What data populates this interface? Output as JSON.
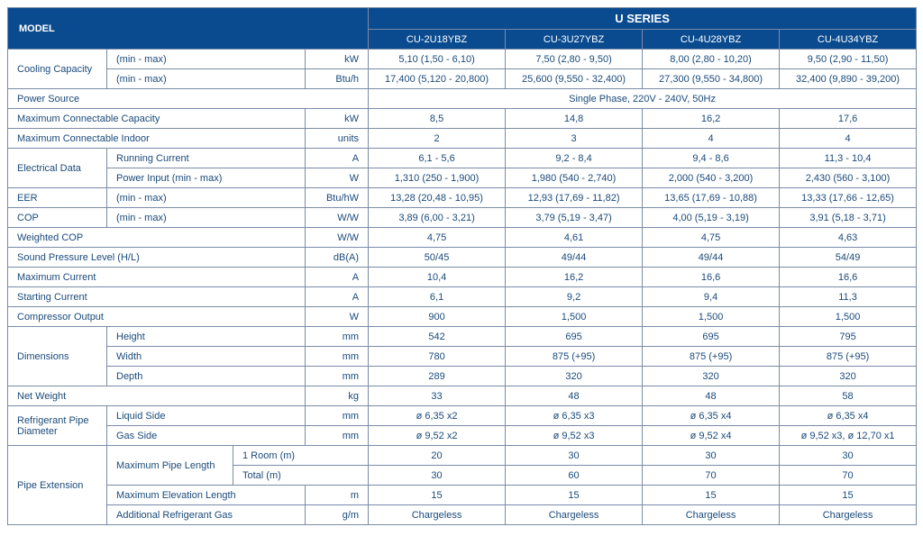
{
  "header": {
    "model_label": "MODEL",
    "series_label": "U SERIES",
    "models": [
      "CU-2U18YBZ",
      "CU-3U27YBZ",
      "CU-4U28YBZ",
      "CU-4U34YBZ"
    ]
  },
  "rows": {
    "cooling_capacity_label": "Cooling Capacity",
    "minmax": "(min - max)",
    "kW": "kW",
    "cc_kw": [
      "5,10 (1,50 - 6,10)",
      "7,50 (2,80 - 9,50)",
      "8,00 (2,80 - 10,20)",
      "9,50 (2,90 - 11,50)"
    ],
    "btu": "Btu/h",
    "cc_btu": [
      "17,400 (5,120 - 20,800)",
      "25,600 (9,550 - 32,400)",
      "27,300 (9,550 - 34,800)",
      "32,400 (9,890 - 39,200)"
    ],
    "power_source_label": "Power Source",
    "power_source_val": "Single Phase, 220V - 240V, 50Hz",
    "max_conn_cap_label": "Maximum Connectable Capacity",
    "max_conn_cap": [
      "8,5",
      "14,8",
      "16,2",
      "17,6"
    ],
    "max_conn_indoor_label": "Maximum Connectable Indoor",
    "units": "units",
    "max_conn_indoor": [
      "2",
      "3",
      "4",
      "4"
    ],
    "elec_data_label": "Electrical Data",
    "running_current_label": "Running Current",
    "A": "A",
    "running_current": [
      "6,1 - 5,6",
      "9,2 - 8,4",
      "9,4 - 8,6",
      "11,3 - 10,4"
    ],
    "power_input_label": "Power Input (min - max)",
    "W": "W",
    "power_input": [
      "1,310 (250 - 1,900)",
      "1,980 (540 - 2,740)",
      "2,000 (540 - 3,200)",
      "2,430 (560 - 3,100)"
    ],
    "eer_label": "EER",
    "btuhw": "Btu/hW",
    "eer": [
      "13,28 (20,48 - 10,95)",
      "12,93 (17,69 - 11,82)",
      "13,65 (17,69 - 10,88)",
      "13,33 (17,66 - 12,65)"
    ],
    "cop_label": "COP",
    "ww": "W/W",
    "cop": [
      "3,89 (6,00 - 3,21)",
      "3,79 (5,19 - 3,47)",
      "4,00 (5,19 - 3,19)",
      "3,91 (5,18 - 3,71)"
    ],
    "wcop_label": "Weighted COP",
    "wcop": [
      "4,75",
      "4,61",
      "4,75",
      "4,63"
    ],
    "spl_label": "Sound Pressure Level (H/L)",
    "dba": "dB(A)",
    "spl": [
      "50/45",
      "49/44",
      "49/44",
      "54/49"
    ],
    "maxc_label": "Maximum Current",
    "maxc": [
      "10,4",
      "16,2",
      "16,6",
      "16,6"
    ],
    "startc_label": "Starting Current",
    "startc": [
      "6,1",
      "9,2",
      "9,4",
      "11,3"
    ],
    "compout_label": "Compressor Output",
    "compout": [
      "900",
      "1,500",
      "1,500",
      "1,500"
    ],
    "dim_label": "Dimensions",
    "height_label": "Height",
    "mm": "mm",
    "height": [
      "542",
      "695",
      "695",
      "795"
    ],
    "width_label": "Width",
    "width": [
      "780",
      "875 (+95)",
      "875 (+95)",
      "875 (+95)"
    ],
    "depth_label": "Depth",
    "depth": [
      "289",
      "320",
      "320",
      "320"
    ],
    "netw_label": "Net Weight",
    "kg": "kg",
    "netw": [
      "33",
      "48",
      "48",
      "58"
    ],
    "refpipe_label": "Refrigerant Pipe Diameter",
    "liquid_label": "Liquid Side",
    "liquid": [
      "ø 6,35 x2",
      "ø 6,35 x3",
      "ø 6,35 x4",
      "ø 6,35 x4"
    ],
    "gas_label": "Gas Side",
    "gas": [
      "ø 9,52 x2",
      "ø 9,52 x3",
      "ø 9,52 x4",
      "ø 9,52 x3, ø 12,70 x1"
    ],
    "pipeext_label": "Pipe Extension",
    "maxpipe_label": "Maximum Pipe Length",
    "oneroom_label": "1 Room (m)",
    "oneroom": [
      "20",
      "30",
      "30",
      "30"
    ],
    "total_label": "Total (m)",
    "total": [
      "30",
      "60",
      "70",
      "70"
    ],
    "maxelev_label": "Maximum Elevation Length",
    "m": "m",
    "maxelev": [
      "15",
      "15",
      "15",
      "15"
    ],
    "addref_label": "Additional Refrigerant Gas",
    "gm": "g/m",
    "addref": [
      "Chargeless",
      "Chargeless",
      "Chargeless",
      "Chargeless"
    ]
  },
  "style": {
    "header_bg": "#0a4b8f",
    "header_fg": "#ffffff",
    "border_color": "#7a8ba8",
    "text_color": "#1a4a7a",
    "font_size_body": 11,
    "font_size_series": 13
  }
}
